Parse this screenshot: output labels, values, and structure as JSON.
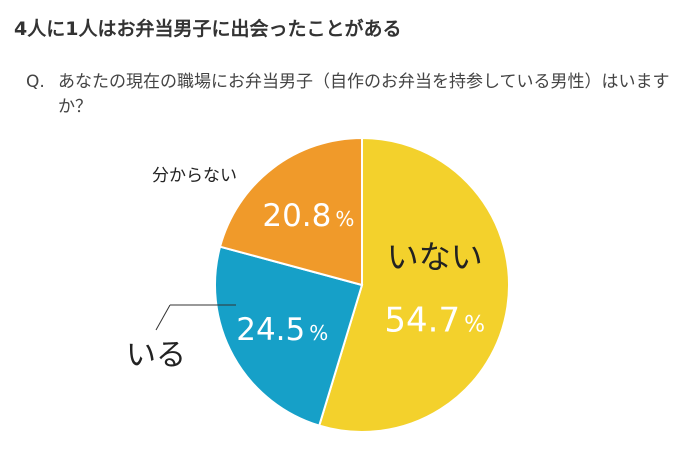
{
  "headline": "4人に1人はお弁当男子に出会ったことがある",
  "question": {
    "prefix": "Q.",
    "text": "あなたの現在の職場にお弁当男子（自作のお弁当を持参している男性）はいますか？"
  },
  "chart_data": {
    "type": "pie",
    "title": "4人に1人はお弁当男子に出会ったことがある",
    "categories": [
      "いない",
      "いる",
      "分からない"
    ],
    "values": [
      54.7,
      24.5,
      20.8
    ],
    "unit": "%",
    "colors": [
      "#f3d12c",
      "#16a0c8",
      "#f09a2a"
    ],
    "start": "12 o'clock, clockwise",
    "slices": [
      {
        "label": "いない",
        "value": 54.7,
        "value_text": "54.7",
        "pct": "%",
        "color": "#f3d12c"
      },
      {
        "label": "いる",
        "value": 24.5,
        "value_text": "24.5",
        "pct": "%",
        "color": "#16a0c8"
      },
      {
        "label": "分からない",
        "value": 20.8,
        "value_text": "20.8",
        "pct": "%",
        "color": "#f09a2a"
      }
    ]
  }
}
